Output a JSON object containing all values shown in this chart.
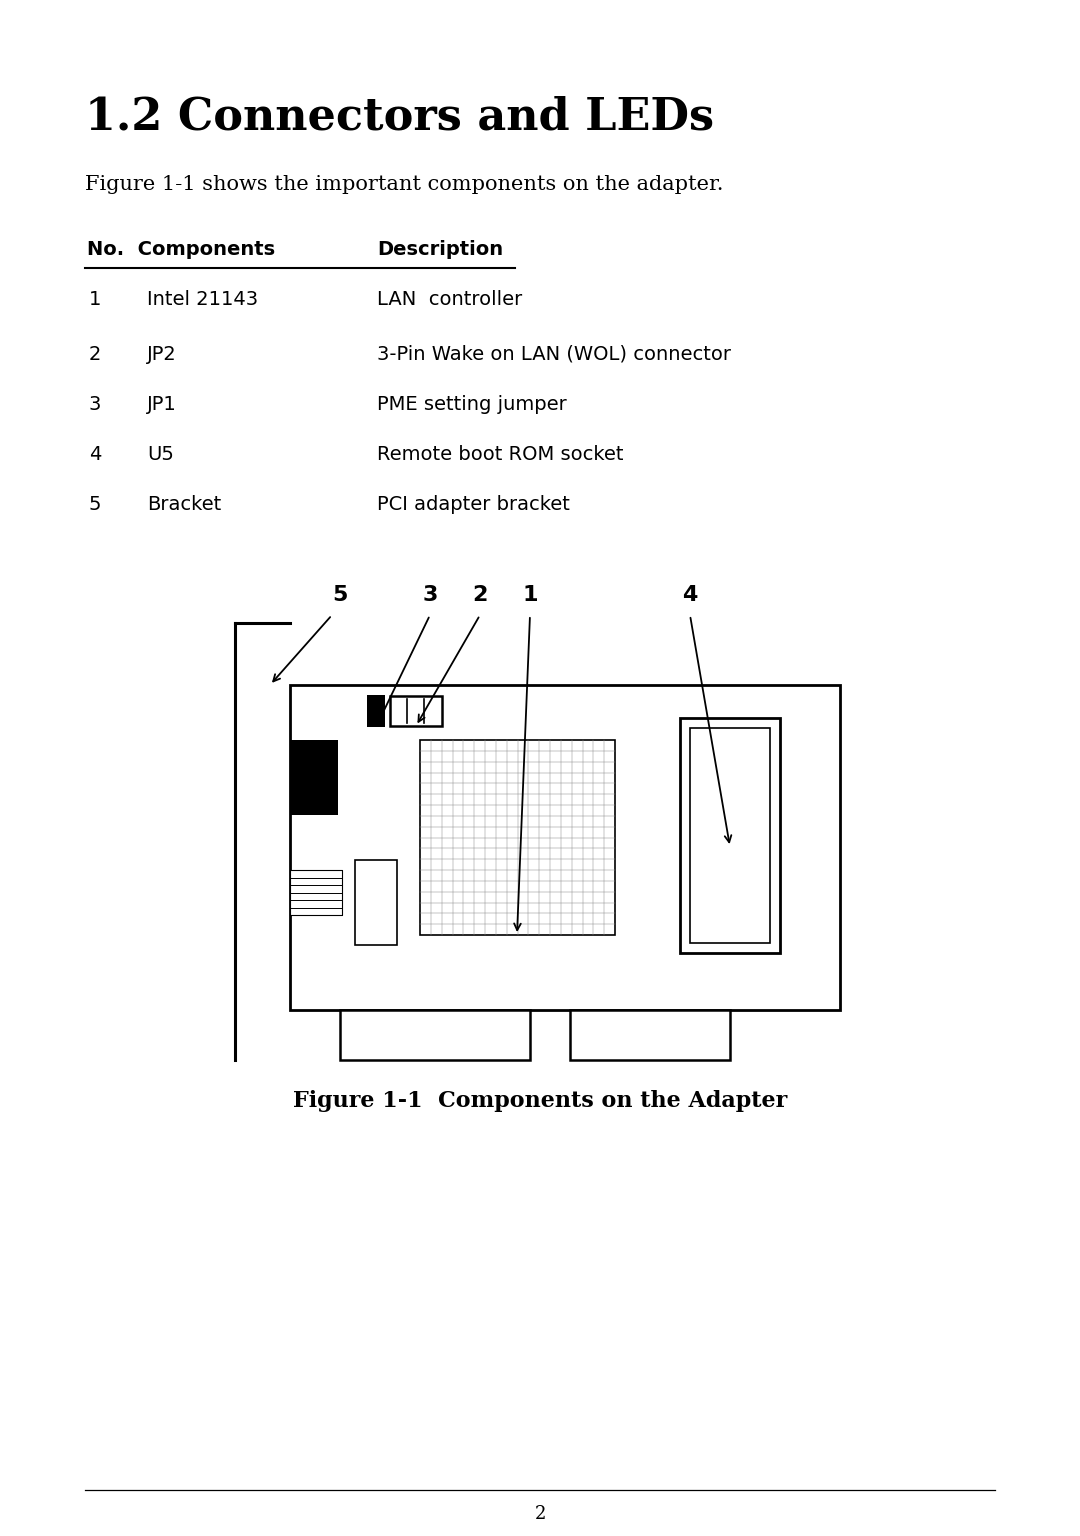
{
  "title": "1.2 Connectors and LEDs",
  "subtitle": "Figure 1-1 shows the important components on the adapter.",
  "col_header_no": "No.  Components",
  "col_header_desc": "Description",
  "table_rows": [
    {
      "no": "1",
      "component": "Intel 21143",
      "description": "LAN  controller"
    },
    {
      "no": "2",
      "component": "JP2",
      "description": "3-Pin Wake on LAN (WOL) connector"
    },
    {
      "no": "3",
      "component": "JP1",
      "description": "PME setting jumper"
    },
    {
      "no": "4",
      "component": "U5",
      "description": "Remote boot ROM socket"
    },
    {
      "no": "5",
      "component": "Bracket",
      "description": "PCI adapter bracket"
    }
  ],
  "figure_caption": "Figure 1-1  Components on the Adapter",
  "page_number": "2",
  "bg_color": "#ffffff",
  "text_color": "#000000",
  "title_fontsize": 32,
  "header_fontsize": 14,
  "body_fontsize": 14,
  "caption_fontsize": 16,
  "subtitle_fontsize": 15,
  "label_fontsize": 16
}
